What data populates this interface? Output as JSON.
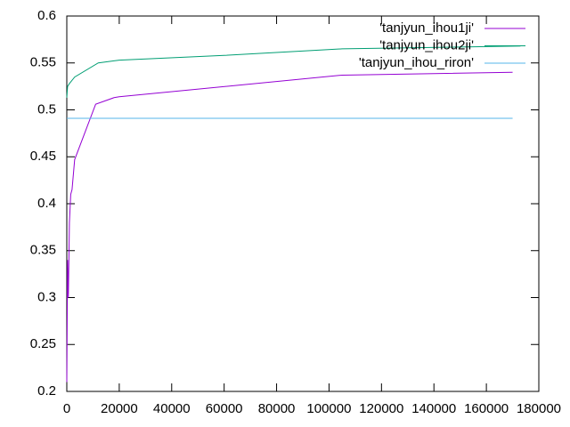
{
  "chart_data": {
    "type": "line",
    "xlim": [
      0,
      180000
    ],
    "xticks": [
      0,
      20000,
      40000,
      60000,
      80000,
      100000,
      120000,
      140000,
      160000,
      180000
    ],
    "ylim": [
      0.2,
      0.6
    ],
    "yticks": [
      0.2,
      0.25,
      0.3,
      0.35,
      0.4,
      0.45,
      0.5,
      0.55,
      0.6
    ],
    "legend": "top-right",
    "series": [
      {
        "name": "'tanjyun_ihou1ji'",
        "color": "#9400d3",
        "x": [
          0,
          300,
          600,
          1000,
          1500,
          2000,
          3000,
          11000,
          18000,
          20000,
          105000,
          170000
        ],
        "values": [
          0.21,
          0.34,
          0.3,
          0.38,
          0.41,
          0.415,
          0.447,
          0.506,
          0.513,
          0.514,
          0.537,
          0.54
        ]
      },
      {
        "name": "'tanjyun_ihou2ji'",
        "color": "#009e73",
        "x": [
          0,
          300,
          1000,
          3000,
          12000,
          20000,
          60000,
          105000,
          173000
        ],
        "values": [
          0.513,
          0.525,
          0.528,
          0.535,
          0.55,
          0.553,
          0.558,
          0.565,
          0.568
        ]
      },
      {
        "name": "'tanjyun_ihou_riron'",
        "color": "#56b4e9",
        "x": [
          0,
          170000
        ],
        "values": [
          0.491,
          0.491
        ]
      }
    ]
  }
}
